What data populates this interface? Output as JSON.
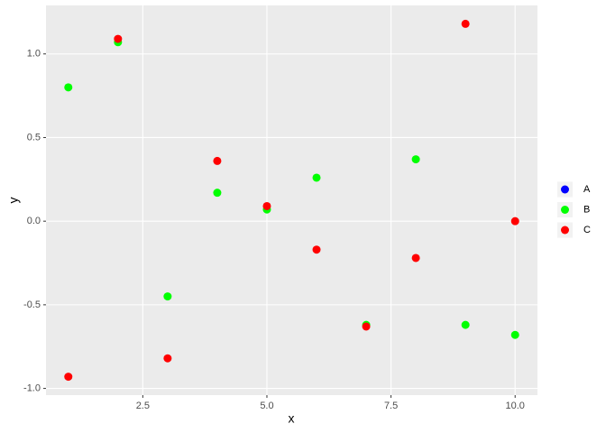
{
  "chart_data": {
    "type": "scatter",
    "x_label": "x",
    "y_label": "y",
    "x": [
      1,
      2,
      3,
      4,
      5,
      6,
      7,
      8,
      9,
      10
    ],
    "series": [
      {
        "name": "A",
        "color": "#0000ff",
        "values": [
          null,
          null,
          null,
          null,
          null,
          null,
          null,
          null,
          null,
          null
        ]
      },
      {
        "name": "B",
        "color": "#00ff00",
        "values": [
          0.8,
          1.07,
          -0.45,
          0.17,
          0.07,
          0.26,
          -0.62,
          0.37,
          -0.62,
          -0.68
        ]
      },
      {
        "name": "C",
        "color": "#ff0000",
        "values": [
          -0.93,
          1.09,
          -0.82,
          0.36,
          0.09,
          -0.17,
          -0.63,
          -0.22,
          1.18,
          0.0
        ]
      }
    ],
    "xlim": [
      0.55,
      10.45
    ],
    "ylim": [
      -1.04,
      1.29
    ],
    "xticks": [
      2.5,
      {
        "value": 5,
        "label": "5.0"
      },
      {
        "value": 7.5,
        "label": "7.5"
      },
      {
        "value": 10,
        "label": "10.0"
      }
    ],
    "yticks": [
      {
        "value": -1,
        "label": "-1.0"
      },
      {
        "value": -0.5,
        "label": "-0.5"
      },
      {
        "value": 0,
        "label": "0.0"
      },
      {
        "value": 0.5,
        "label": "0.5"
      },
      {
        "value": 1,
        "label": "1.0"
      }
    ],
    "grid": true,
    "legend": "right"
  }
}
